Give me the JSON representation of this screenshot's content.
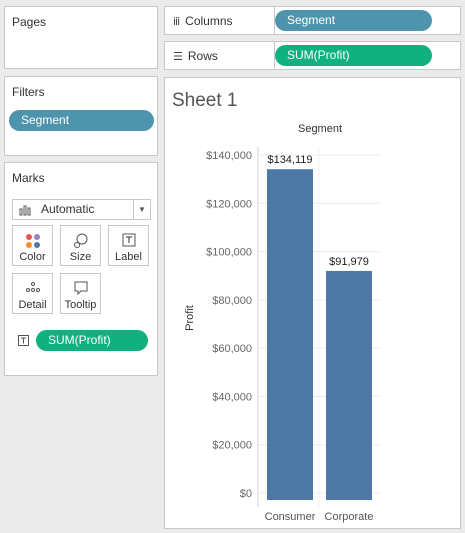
{
  "left_panel": {
    "pages": {
      "title": "Pages"
    },
    "filters": {
      "title": "Filters",
      "pills": [
        "Segment"
      ]
    },
    "marks": {
      "title": "Marks",
      "type_value": "Automatic",
      "type_icon": "bar-chart-icon",
      "buttons": [
        {
          "label": "Color",
          "icon": "color-dots-icon"
        },
        {
          "label": "Size",
          "icon": "size-icon"
        },
        {
          "label": "Label",
          "icon": "text-label-icon"
        },
        {
          "label": "Detail",
          "icon": "detail-dots-icon"
        },
        {
          "label": "Tooltip",
          "icon": "tooltip-icon"
        }
      ],
      "field_icon": "text-label-icon",
      "field_pill": "SUM(Profit)"
    }
  },
  "shelves": {
    "columns": {
      "label": "Columns",
      "icon": "columns-icon",
      "pill": "Segment"
    },
    "rows": {
      "label": "Rows",
      "icon": "rows-icon",
      "pill": "SUM(Profit)"
    }
  },
  "sheet": {
    "title": "Sheet 1"
  },
  "colors": {
    "bar": "#4e79a7",
    "dimension_pill": "#4e94ad",
    "measure_pill": "#11b07f"
  },
  "chart_data": {
    "type": "bar",
    "header": "Segment",
    "ylabel": "Profit",
    "categories": [
      "Consumer",
      "Corporate"
    ],
    "values": [
      134119,
      91979
    ],
    "value_labels": [
      "$134,119",
      "$91,979"
    ],
    "ylim": [
      0,
      140000
    ],
    "yticks": [
      0,
      20000,
      40000,
      60000,
      80000,
      100000,
      120000,
      140000
    ],
    "ytick_labels": [
      "$0",
      "$20,000",
      "$40,000",
      "$60,000",
      "$80,000",
      "$100,000",
      "$120,000",
      "$140,000"
    ],
    "grid": true
  }
}
